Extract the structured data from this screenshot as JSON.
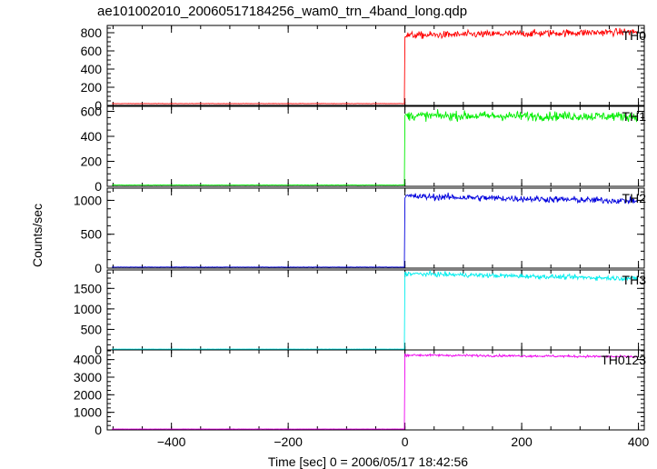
{
  "chart_data": {
    "type": "line",
    "title": "ae101002010_20060517184256_wam0_trn_4band_long.qdp",
    "xlabel": "Time [sec] 0 = 2006/05/17 18:42:56",
    "ylabel": "Counts/sec",
    "xlim": [
      -510,
      410
    ],
    "xticks": [
      "−400",
      "−200",
      "0",
      "200",
      "400"
    ],
    "xtick_values": [
      -400,
      -200,
      0,
      200,
      400
    ],
    "event_time": 0,
    "panels": [
      {
        "name": "TH0",
        "color": "#ff0000",
        "ylim": [
          0,
          880
        ],
        "yticks": [
          0,
          200,
          400,
          600,
          800
        ],
        "pre_level": 20,
        "pre_noise": 1.5,
        "post_start": 770,
        "post_end": 810,
        "post_noise": 28
      },
      {
        "name": "TH1",
        "color": "#00ee00",
        "ylim": [
          0,
          640
        ],
        "yticks": [
          0,
          200,
          400,
          600
        ],
        "pre_level": 10,
        "pre_noise": 1.2,
        "post_start": 565,
        "post_end": 560,
        "post_noise": 26
      },
      {
        "name": "TH2",
        "color": "#0000dd",
        "ylim": [
          0,
          1180
        ],
        "yticks": [
          0,
          500,
          1000
        ],
        "pre_level": 15,
        "pre_noise": 2,
        "post_start": 1060,
        "post_end": 990,
        "post_noise": 35
      },
      {
        "name": "TH3",
        "color": "#00eeee",
        "ylim": [
          0,
          1950
        ],
        "yticks": [
          0,
          500,
          1000,
          1500
        ],
        "pre_level": 20,
        "pre_noise": 2,
        "post_start": 1860,
        "post_end": 1740,
        "post_noise": 40
      },
      {
        "name": "TH0123",
        "color": "#ee00ee",
        "ylim": [
          0,
          4550
        ],
        "yticks": [
          0,
          1000,
          2000,
          3000,
          4000
        ],
        "pre_level": 50,
        "pre_noise": 4,
        "post_start": 4260,
        "post_end": 4160,
        "post_noise": 45
      }
    ]
  }
}
